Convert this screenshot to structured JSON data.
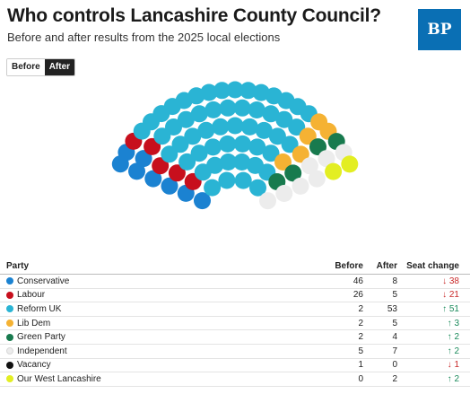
{
  "header": {
    "title": "Who controls Lancashire County Council?",
    "subtitle": "Before and after results from the 2025 local elections",
    "logo": "BP"
  },
  "toggle": {
    "before_label": "Before",
    "after_label": "After",
    "selected": "After"
  },
  "table": {
    "headers": {
      "party": "Party",
      "before": "Before",
      "after": "After",
      "change": "Seat change"
    },
    "rows": [
      {
        "party": "Conservative",
        "color": "#1b82d1",
        "before": "46",
        "after": "8",
        "change": "38",
        "arrow": "↓",
        "dir": "down"
      },
      {
        "party": "Labour",
        "color": "#c70f1d",
        "before": "26",
        "after": "5",
        "change": "21",
        "arrow": "↓",
        "dir": "down"
      },
      {
        "party": "Reform UK",
        "color": "#2ab4d4",
        "before": "2",
        "after": "53",
        "change": "51",
        "arrow": "↑",
        "dir": "up"
      },
      {
        "party": "Lib Dem",
        "color": "#f5b233",
        "before": "2",
        "after": "5",
        "change": "3",
        "arrow": "↑",
        "dir": "up"
      },
      {
        "party": "Green Party",
        "color": "#187a4e",
        "before": "2",
        "after": "4",
        "change": "2",
        "arrow": "↑",
        "dir": "up"
      },
      {
        "party": "Independent",
        "color": "#ececec",
        "before": "5",
        "after": "7",
        "change": "2",
        "arrow": "↑",
        "dir": "up"
      },
      {
        "party": "Vacancy",
        "color": "#111111",
        "before": "1",
        "after": "0",
        "change": "1",
        "arrow": "↓",
        "dir": "down"
      },
      {
        "party": "Our West Lancashire",
        "color": "#e3ee22",
        "before": "0",
        "after": "2",
        "change": "2",
        "arrow": "↑",
        "dir": "up"
      }
    ]
  },
  "chart_data": {
    "type": "parliament",
    "view": "After",
    "total_seats": 84,
    "series": [
      {
        "name": "Conservative",
        "seats": 8,
        "color": "#1b82d1"
      },
      {
        "name": "Labour",
        "seats": 5,
        "color": "#c70f1d"
      },
      {
        "name": "Reform UK",
        "seats": 53,
        "color": "#2ab4d4"
      },
      {
        "name": "Lib Dem",
        "seats": 5,
        "color": "#f5b233"
      },
      {
        "name": "Green Party",
        "seats": 4,
        "color": "#187a4e"
      },
      {
        "name": "Independent",
        "seats": 7,
        "color": "#ececec"
      },
      {
        "name": "Our West Lancashire",
        "seats": 2,
        "color": "#e3ee22"
      }
    ]
  }
}
